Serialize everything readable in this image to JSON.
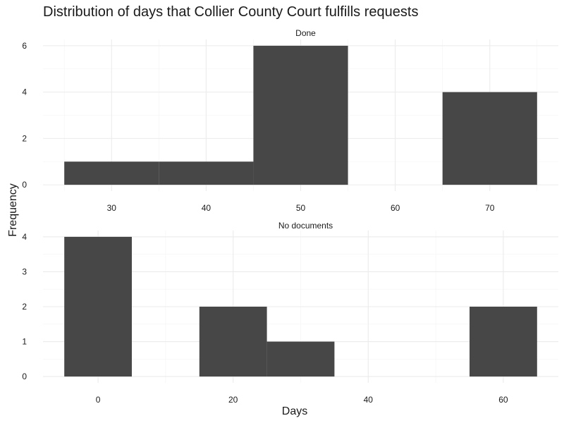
{
  "chart_data": {
    "type": "bar",
    "title": "Distribution of days that Collier County Court fulfills requests",
    "xlabel": "Days",
    "ylabel": "Frequency",
    "bar_color": "#474747",
    "grid": true,
    "facets": [
      {
        "name": "Done",
        "xlim": [
          25,
          75
        ],
        "ylim": [
          0,
          6
        ],
        "x_ticks": [
          30,
          40,
          50,
          60,
          70
        ],
        "y_ticks": [
          0,
          2,
          4,
          6
        ],
        "bins": [
          {
            "x0": 25,
            "x1": 35,
            "count": 1
          },
          {
            "x0": 35,
            "x1": 45,
            "count": 1
          },
          {
            "x0": 45,
            "x1": 55,
            "count": 6
          },
          {
            "x0": 55,
            "x1": 65,
            "count": 0
          },
          {
            "x0": 65,
            "x1": 75,
            "count": 4
          }
        ]
      },
      {
        "name": "No documents",
        "xlim": [
          -5,
          65
        ],
        "ylim": [
          0,
          4
        ],
        "x_ticks": [
          0,
          20,
          40,
          60
        ],
        "y_ticks": [
          0,
          1,
          2,
          3,
          4
        ],
        "bins": [
          {
            "x0": -5,
            "x1": 5,
            "count": 4
          },
          {
            "x0": 5,
            "x1": 15,
            "count": 0
          },
          {
            "x0": 15,
            "x1": 25,
            "count": 2
          },
          {
            "x0": 25,
            "x1": 35,
            "count": 1
          },
          {
            "x0": 35,
            "x1": 45,
            "count": 0
          },
          {
            "x0": 45,
            "x1": 55,
            "count": 0
          },
          {
            "x0": 55,
            "x1": 65,
            "count": 2
          }
        ]
      }
    ]
  }
}
